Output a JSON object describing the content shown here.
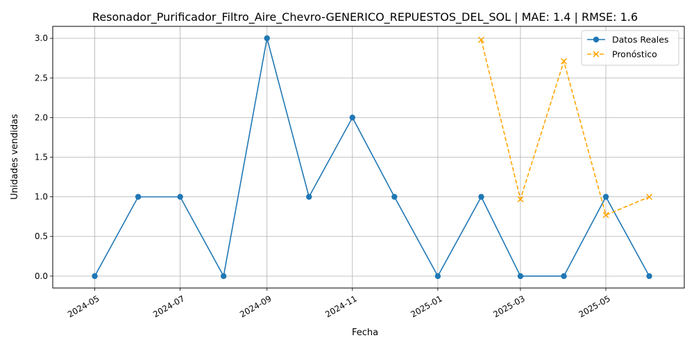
{
  "chart_data": {
    "type": "line",
    "title": "Resonador_Purificador_Filtro_Aire_Chevro-GENERICO_REPUESTOS_DEL_SOL | MAE: 1.4 | RMSE: 1.6",
    "xlabel": "Fecha",
    "ylabel": "Unidades vendidas",
    "xlim": [
      "2024-04-01",
      "2025-06-26"
    ],
    "ylim": [
      -0.15,
      3.15
    ],
    "grid": true,
    "legend_position": "top-right",
    "x_ticks": [
      "2024-05",
      "2024-07",
      "2024-09",
      "2024-11",
      "2025-01",
      "2025-03",
      "2025-05"
    ],
    "y_ticks": [
      "0.0",
      "0.5",
      "1.0",
      "1.5",
      "2.0",
      "2.5",
      "3.0"
    ],
    "series": [
      {
        "name": "Datos Reales",
        "color": "#1f77b4",
        "style": "solid",
        "marker": "circle",
        "x": [
          "2024-05-01",
          "2024-06-01",
          "2024-07-01",
          "2024-08-01",
          "2024-09-01",
          "2024-10-01",
          "2024-11-01",
          "2024-12-01",
          "2025-01-01",
          "2025-02-01",
          "2025-03-01",
          "2025-04-01",
          "2025-05-01",
          "2025-06-01"
        ],
        "values": [
          0,
          1,
          1,
          0,
          3,
          1,
          2,
          1,
          0,
          1,
          0,
          0,
          1,
          0
        ]
      },
      {
        "name": "Pronóstico",
        "color": "#ffa500",
        "style": "dashed",
        "marker": "x",
        "x": [
          "2025-02-01",
          "2025-03-01",
          "2025-04-01",
          "2025-05-01",
          "2025-06-01"
        ],
        "values": [
          2.98,
          0.97,
          2.71,
          0.77,
          1.0
        ]
      }
    ]
  }
}
